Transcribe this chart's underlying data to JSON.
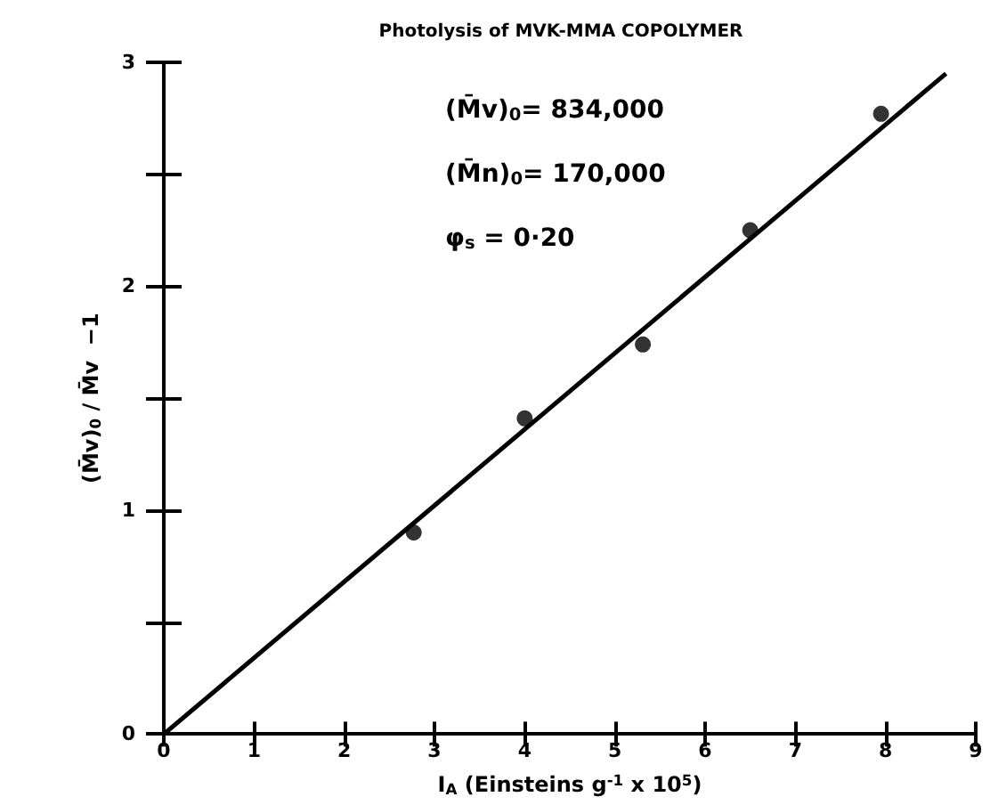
{
  "chart_data": {
    "type": "scatter",
    "title": "Photolysis of MVK-MMA COPOLYMER",
    "xlabel": "I$_{A}$ (Einsteins g$^{-1}$ x 10$^{5}$)",
    "ylabel": "(M̄v)$_{0}$ / M̄v  −1",
    "annotations": [
      "(M̄v)$_{0}$= 834,000",
      "(M̄n)$_{0}$= 170,000",
      "φ$_{s}$ = 0·20"
    ],
    "series": [
      {
        "color": "#000000",
        "x": [
          2.77,
          4.0,
          5.31,
          6.5,
          7.95
        ],
        "values": [
          0.9,
          1.41,
          1.74,
          2.25,
          2.77
        ]
      },
      {
        "type": "line",
        "marker": "none",
        "color": "#000000",
        "x": [
          0,
          8.67
        ],
        "values": [
          0,
          2.95
        ]
      }
    ],
    "xlim": [
      0,
      9
    ],
    "xticks": [
      0,
      1,
      2,
      3,
      4,
      5,
      6,
      7,
      8,
      9
    ],
    "ylim": [
      0,
      3
    ],
    "yticks": [
      0,
      {
        "value": 0.5,
        "label": null
      },
      1,
      {
        "value": 1.5,
        "label": null
      },
      2,
      {
        "value": 2.5,
        "label": null
      },
      3
    ],
    "grid": false,
    "marker": "circle",
    "line_style": "solid"
  }
}
